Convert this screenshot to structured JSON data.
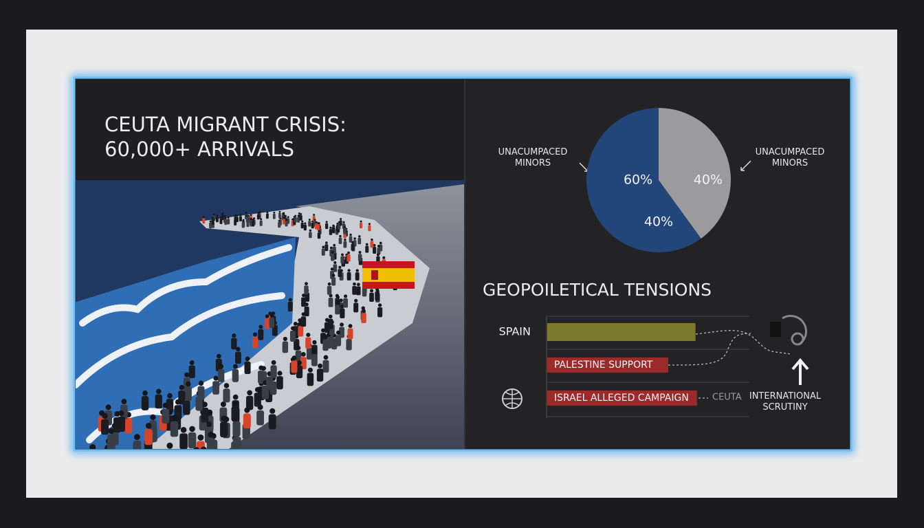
{
  "panel": {
    "title": [
      "CEUTA MIGRANT CRISIS:",
      "60,000+ ARRIVALS"
    ]
  },
  "chart_data": [
    {
      "type": "pie",
      "categories": [
        "UNACUMPACED MINORS",
        "UNACUMPACED MINORS"
      ],
      "values": [
        40,
        60
      ],
      "value_labels": [
        "40%",
        "60%"
      ],
      "colors": [
        "#9b9b9d",
        "#23467a"
      ],
      "annotations": [
        "40%"
      ]
    },
    {
      "type": "bar",
      "title": "GEOPOILETICAL TENSIONS",
      "categories": [
        "SPAIN",
        "PALESTINE SUPPORT",
        "ISRAEL ALLEGED CAMPAIGN"
      ],
      "values": [
        98,
        80,
        99
      ],
      "colors": [
        "#7b7a2e",
        "#9b2a2a",
        "#9b2a2a"
      ],
      "annotations": [
        "CEUTA",
        "INTERNATIONAL SCRUTINY"
      ]
    }
  ]
}
